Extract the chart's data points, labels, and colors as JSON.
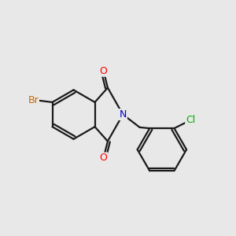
{
  "background_color": "#e8e8e8",
  "bond_color": "#1a1a1a",
  "atom_colors": {
    "O": "#ff0000",
    "N": "#0000cc",
    "Br": "#cc6600",
    "Cl": "#00aa00"
  },
  "figsize": [
    3.0,
    3.0
  ],
  "dpi": 100
}
